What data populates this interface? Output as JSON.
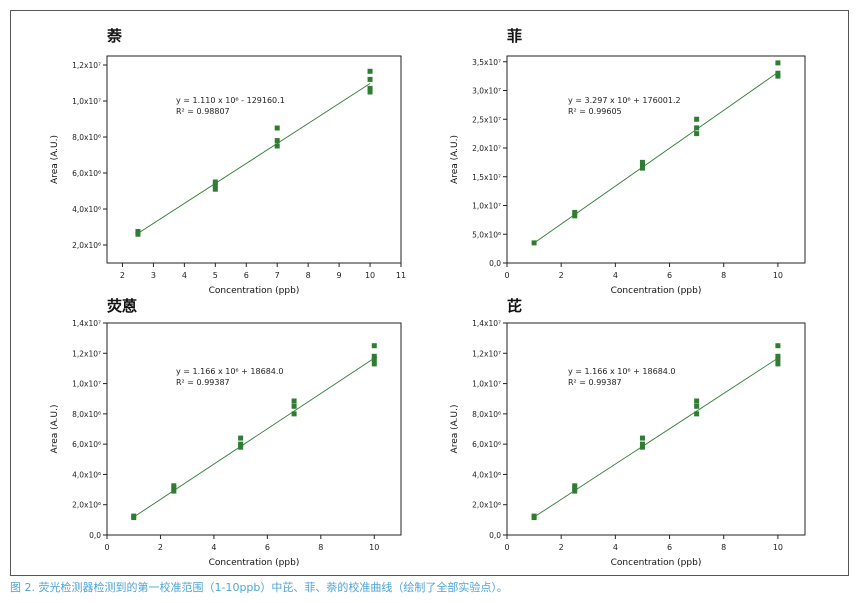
{
  "caption": "图 2. 荧光检测器检测到的第一校准范围（1-10ppb）中芘、菲、萘的校准曲线（绘制了全部实验点）。",
  "colors": {
    "marker": "#2e7d32",
    "line": "#2e7d32",
    "axis": "#222222",
    "caption": "#4ea3d8"
  },
  "chart_data": [
    {
      "type": "scatter",
      "title": "萘",
      "xlabel": "Concentration (ppb)",
      "ylabel": "Area (A.U.)",
      "xlim": [
        1.5,
        11
      ],
      "ylim": [
        1000000,
        12500000
      ],
      "x_ticks": [
        2,
        3,
        4,
        5,
        6,
        7,
        8,
        9,
        10,
        11
      ],
      "y_ticks": [
        2000000,
        4000000,
        6000000,
        8000000,
        10000000,
        12000000
      ],
      "y_tick_labels": [
        "2,0x10⁶",
        "4,0x10⁶",
        "6,0x10⁶",
        "8,0x10⁶",
        "1,0x10⁷",
        "1,2x10⁷"
      ],
      "equation": "y = 1.110 x 10⁶ - 129160.1",
      "r2": "R² = 0.98807",
      "fit": {
        "slope": 1110000,
        "intercept": -129160.1,
        "x_range": [
          2.5,
          10
        ]
      },
      "points": [
        [
          2.5,
          2600000
        ],
        [
          2.5,
          2750000
        ],
        [
          5,
          5100000
        ],
        [
          5,
          5300000
        ],
        [
          5,
          5500000
        ],
        [
          7,
          7500000
        ],
        [
          7,
          7800000
        ],
        [
          7,
          8500000
        ],
        [
          10,
          10500000
        ],
        [
          10,
          10700000
        ],
        [
          10,
          11200000
        ],
        [
          10,
          11650000
        ]
      ],
      "grid": false
    },
    {
      "type": "scatter",
      "title": "菲",
      "xlabel": "Concentration (ppb)",
      "ylabel": "Area (A.U.)",
      "xlim": [
        0,
        11
      ],
      "ylim": [
        0,
        36000000
      ],
      "x_ticks": [
        0,
        2,
        4,
        6,
        8,
        10
      ],
      "y_ticks": [
        0,
        5000000,
        10000000,
        15000000,
        20000000,
        25000000,
        30000000,
        35000000
      ],
      "y_tick_labels": [
        "0,0",
        "5,0x10⁶",
        "1,0x10⁷",
        "1,5x10⁷",
        "2,0x10⁷",
        "2,5x10⁷",
        "3,0x10⁷",
        "3,5x10⁷"
      ],
      "equation": "y = 3.297 x 10⁶ + 176001.2",
      "r2": "R² = 0.99605",
      "fit": {
        "slope": 3297000,
        "intercept": 176001.2,
        "x_range": [
          1,
          10
        ]
      },
      "points": [
        [
          1,
          3500000
        ],
        [
          2.5,
          8200000
        ],
        [
          2.5,
          8800000
        ],
        [
          5,
          16500000
        ],
        [
          5,
          17200000
        ],
        [
          5,
          17500000
        ],
        [
          7,
          22500000
        ],
        [
          7,
          23500000
        ],
        [
          7,
          25000000
        ],
        [
          10,
          32500000
        ],
        [
          10,
          33000000
        ],
        [
          10,
          34800000
        ]
      ],
      "grid": false
    },
    {
      "type": "scatter",
      "title": "荧蒽",
      "xlabel": "Concentration (ppb)",
      "ylabel": "Area (A.U.)",
      "xlim": [
        0,
        11
      ],
      "ylim": [
        0,
        14000000
      ],
      "x_ticks": [
        0,
        2,
        4,
        6,
        8,
        10
      ],
      "y_ticks": [
        0,
        2000000,
        4000000,
        6000000,
        8000000,
        10000000,
        12000000,
        14000000
      ],
      "y_tick_labels": [
        "0,0",
        "2,0x10⁶",
        "4,0x10⁶",
        "6,0x10⁶",
        "8,0x10⁶",
        "1,0x10⁷",
        "1,2x10⁷",
        "1,4x10⁷"
      ],
      "equation": "y = 1.166 x 10⁶ + 18684.0",
      "r2": "R² = 0.99387",
      "fit": {
        "slope": 1166000,
        "intercept": 18684,
        "x_range": [
          1,
          10
        ]
      },
      "points": [
        [
          1,
          1150000
        ],
        [
          1,
          1250000
        ],
        [
          2.5,
          2900000
        ],
        [
          2.5,
          3100000
        ],
        [
          2.5,
          3250000
        ],
        [
          5,
          5800000
        ],
        [
          5,
          6000000
        ],
        [
          5,
          6400000
        ],
        [
          7,
          8000000
        ],
        [
          7,
          8500000
        ],
        [
          7,
          8850000
        ],
        [
          10,
          11300000
        ],
        [
          10,
          11600000
        ],
        [
          10,
          11800000
        ],
        [
          10,
          12500000
        ]
      ],
      "grid": false
    },
    {
      "type": "scatter",
      "title": "芘",
      "xlabel": "Concentration (ppb)",
      "ylabel": "Area (A.U.)",
      "xlim": [
        0,
        11
      ],
      "ylim": [
        0,
        14000000
      ],
      "x_ticks": [
        0,
        2,
        4,
        6,
        8,
        10
      ],
      "y_ticks": [
        0,
        2000000,
        4000000,
        6000000,
        8000000,
        10000000,
        12000000,
        14000000
      ],
      "y_tick_labels": [
        "0,0",
        "2,0x10⁶",
        "4,0x10⁶",
        "6,0x10⁶",
        "8,0x10⁶",
        "1,0x10⁷",
        "1,2x10⁷",
        "1,4x10⁷"
      ],
      "equation": "y = 1.166 x 10⁶ + 18684.0",
      "r2": "R² = 0.99387",
      "fit": {
        "slope": 1166000,
        "intercept": 18684,
        "x_range": [
          1,
          10
        ]
      },
      "points": [
        [
          1,
          1150000
        ],
        [
          1,
          1250000
        ],
        [
          2.5,
          2900000
        ],
        [
          2.5,
          3100000
        ],
        [
          2.5,
          3250000
        ],
        [
          5,
          5800000
        ],
        [
          5,
          6000000
        ],
        [
          5,
          6400000
        ],
        [
          7,
          8000000
        ],
        [
          7,
          8500000
        ],
        [
          7,
          8850000
        ],
        [
          10,
          11300000
        ],
        [
          10,
          11600000
        ],
        [
          10,
          11800000
        ],
        [
          10,
          12500000
        ]
      ],
      "grid": false
    }
  ]
}
